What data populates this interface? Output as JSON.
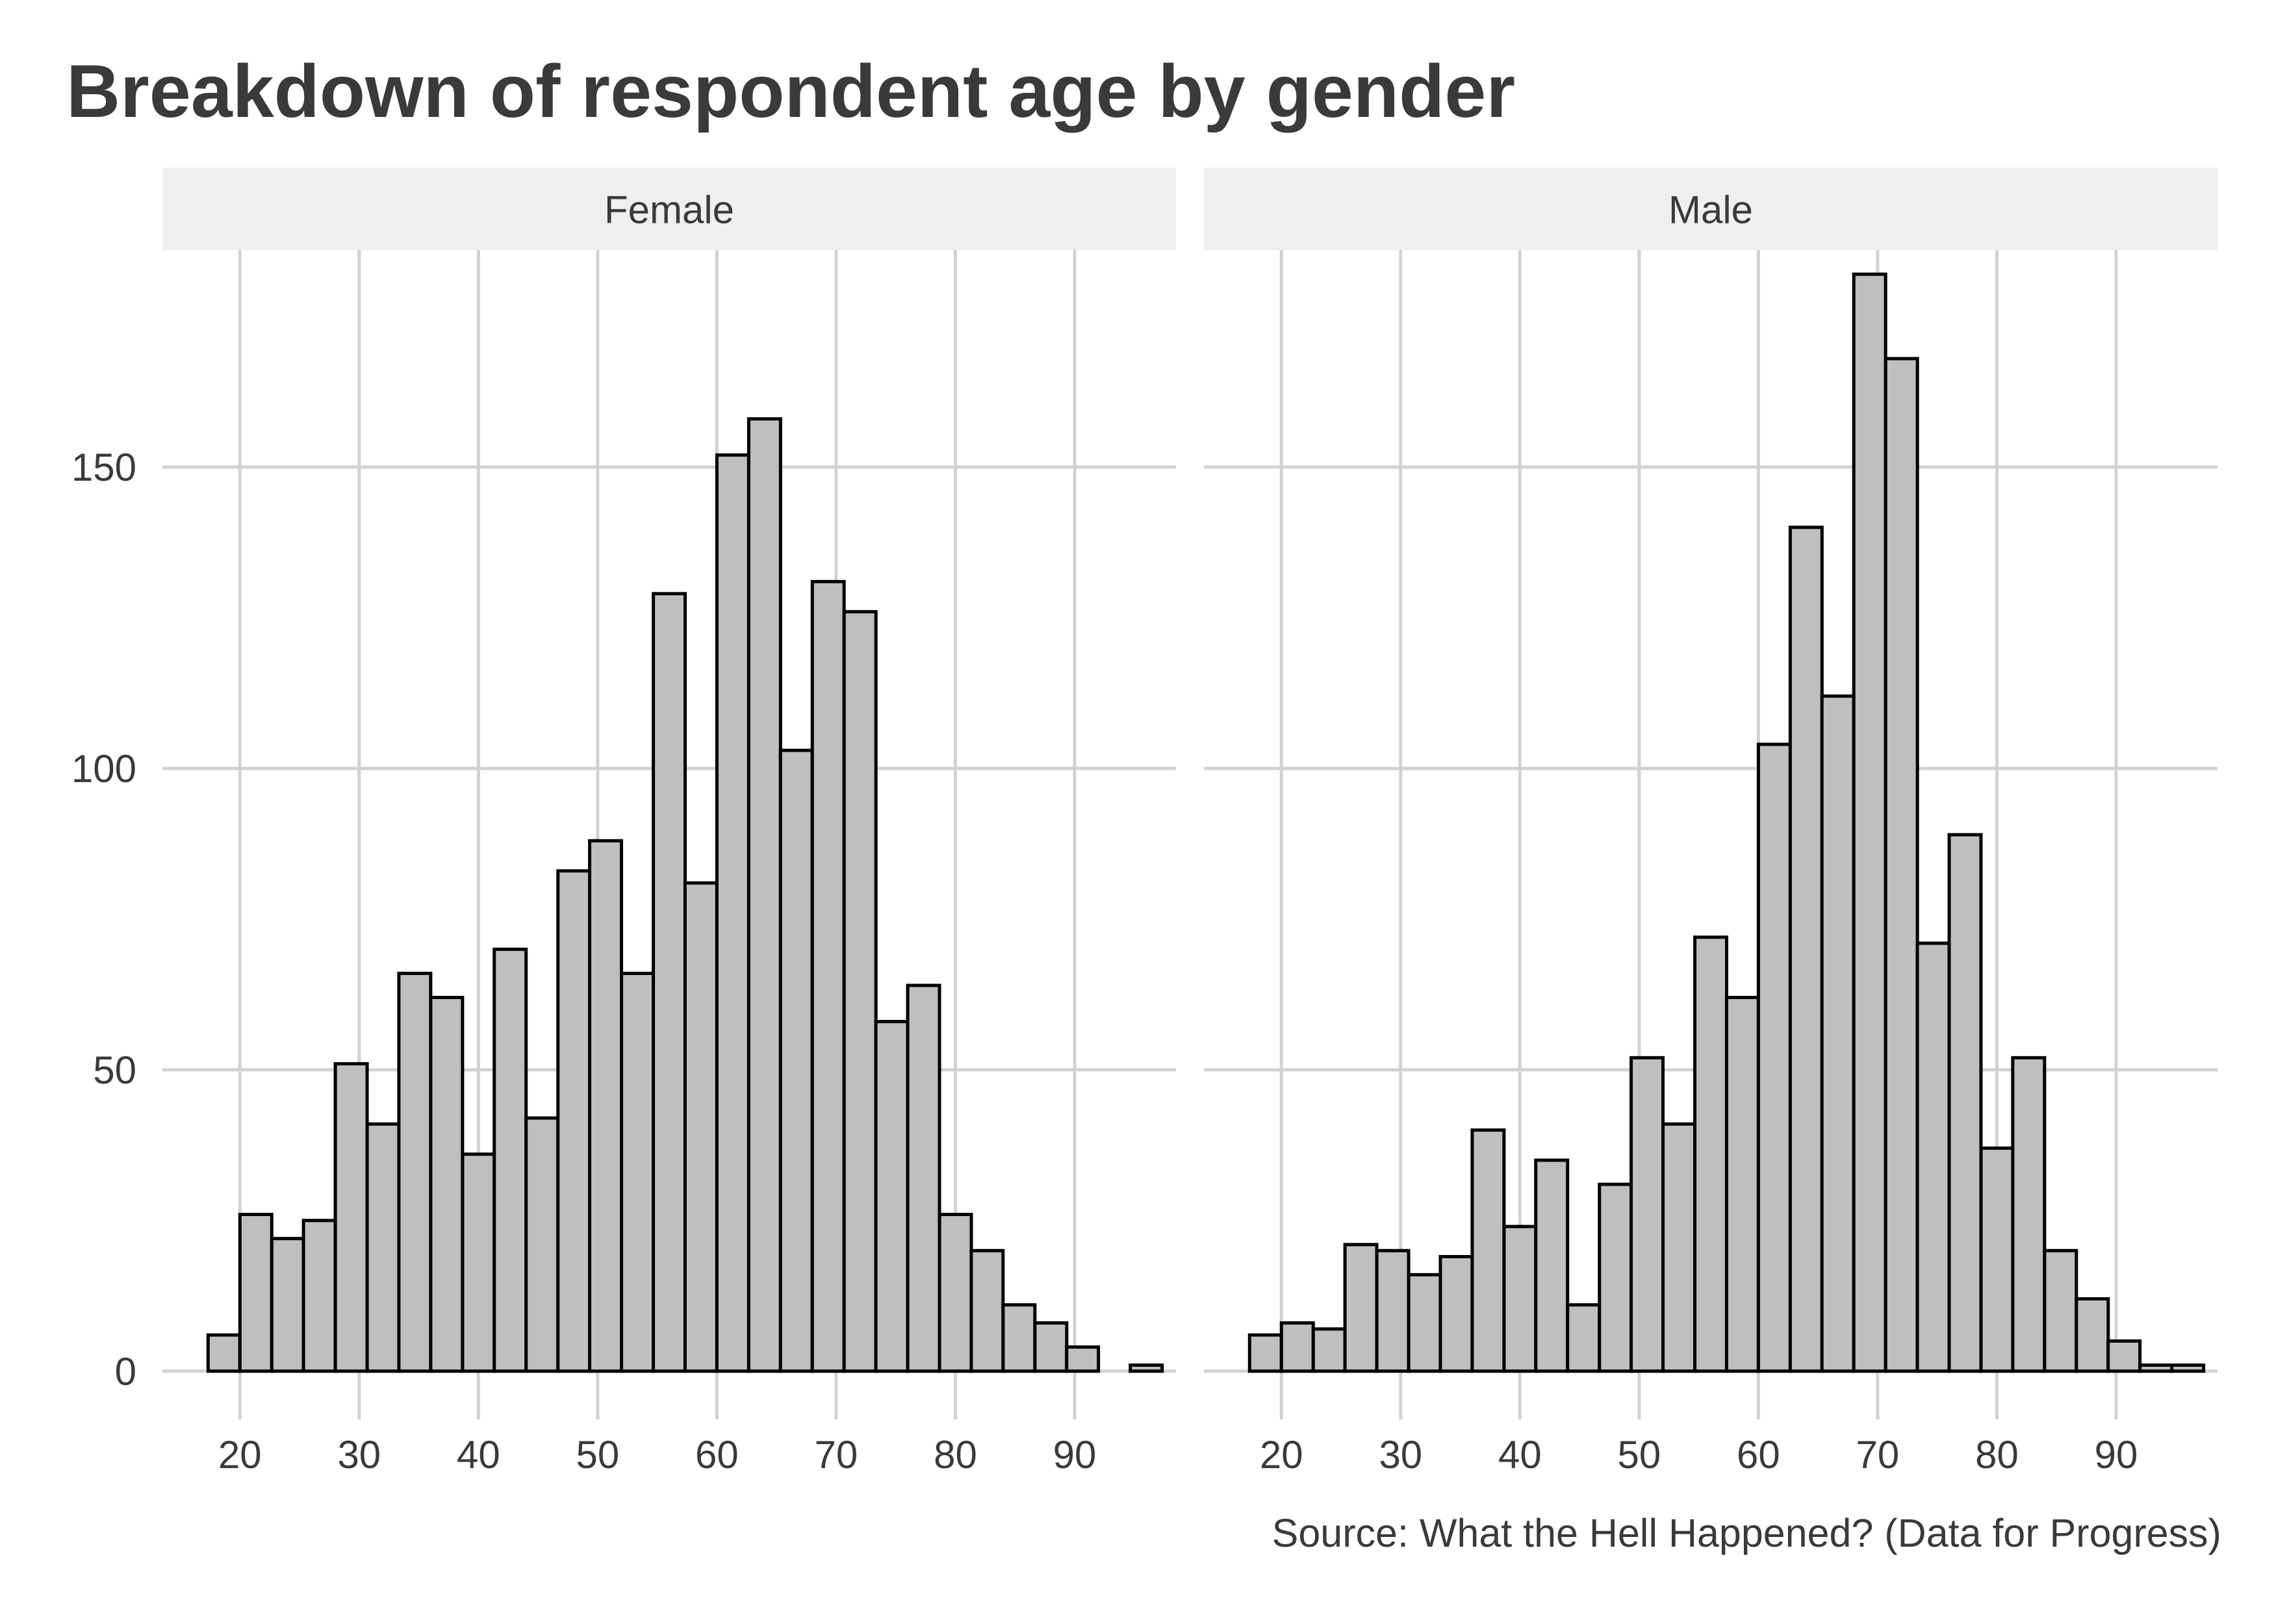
{
  "chart_data": {
    "type": "bar",
    "title": "Breakdown of respondent age by gender",
    "caption": "Source: What the Hell Happened? (Data for Progress)",
    "xlabel": "",
    "ylabel": "",
    "bin_width": 2.667,
    "first_bin_start": 17.33,
    "xlim": [
      13.5,
      98.5
    ],
    "ylim": [
      -8,
      186
    ],
    "x_ticks": [
      20,
      30,
      40,
      50,
      60,
      70,
      80,
      90
    ],
    "y_ticks": [
      0,
      50,
      100,
      150
    ],
    "grid": true,
    "bar_fill": "#bfbfbf",
    "bar_stroke": "#000000",
    "strip_fill": "#efefef",
    "panels": [
      {
        "name": "Female",
        "bin_starts": [
          17.33,
          20.0,
          22.67,
          25.33,
          28.0,
          30.67,
          33.33,
          36.0,
          38.67,
          41.33,
          44.0,
          46.67,
          49.33,
          52.0,
          54.67,
          57.33,
          60.0,
          62.67,
          65.33,
          68.0,
          70.67,
          73.33,
          76.0,
          78.67,
          81.33,
          84.0,
          86.67,
          89.33,
          92.0,
          94.67
        ],
        "values": [
          6,
          26,
          22,
          25,
          51,
          41,
          66,
          62,
          36,
          70,
          42,
          83,
          88,
          66,
          129,
          81,
          152,
          158,
          103,
          131,
          126,
          58,
          64,
          26,
          20,
          11,
          8,
          4,
          0,
          1
        ]
      },
      {
        "name": "Male",
        "bin_starts": [
          17.33,
          20.0,
          22.67,
          25.33,
          28.0,
          30.67,
          33.33,
          36.0,
          38.67,
          41.33,
          44.0,
          46.67,
          49.33,
          52.0,
          54.67,
          57.33,
          60.0,
          62.67,
          65.33,
          68.0,
          70.67,
          73.33,
          76.0,
          78.67,
          81.33,
          84.0,
          86.67,
          89.33,
          92.0,
          94.67
        ],
        "values": [
          6,
          8,
          7,
          21,
          20,
          16,
          19,
          40,
          24,
          35,
          11,
          31,
          52,
          41,
          72,
          62,
          104,
          140,
          112,
          182,
          168,
          71,
          89,
          37,
          52,
          20,
          12,
          5,
          1,
          1
        ]
      }
    ]
  }
}
